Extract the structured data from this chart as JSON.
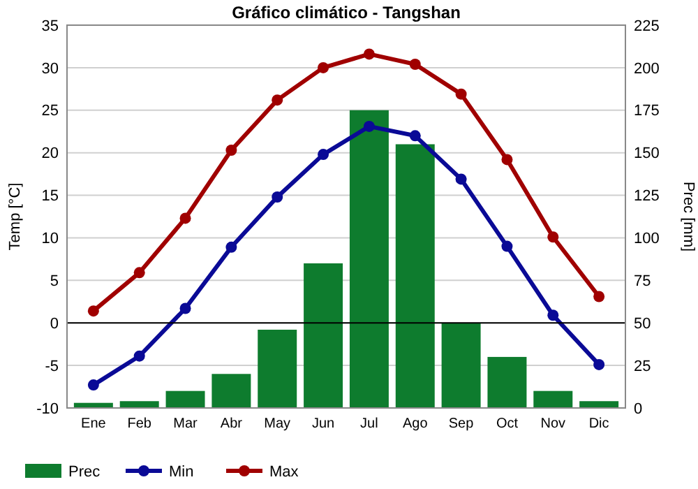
{
  "chart_data": {
    "type": "line",
    "title": "Gráfico climático - Tangshan",
    "ylabel": "Temp [°C]",
    "y2label": "Prec [mm]",
    "categories": [
      "Ene",
      "Feb",
      "Mar",
      "Abr",
      "May",
      "Jun",
      "Jul",
      "Ago",
      "Sep",
      "Oct",
      "Nov",
      "Dic"
    ],
    "series": [
      {
        "name": "Prec",
        "type": "bar",
        "axis": "y2",
        "color": "#0e7c2e",
        "values": [
          3,
          4,
          10,
          20,
          46,
          85,
          175,
          155,
          50,
          30,
          10,
          4
        ]
      },
      {
        "name": "Min",
        "color": "#0a0a96",
        "values": [
          -7.3,
          -3.9,
          1.7,
          8.9,
          14.8,
          19.8,
          23.1,
          22.0,
          16.9,
          9.0,
          0.9,
          -4.9
        ]
      },
      {
        "name": "Max",
        "color": "#a00000",
        "values": [
          1.4,
          5.9,
          12.3,
          20.3,
          26.2,
          30.0,
          31.6,
          30.4,
          26.9,
          19.2,
          10.1,
          3.1
        ]
      }
    ],
    "ylim": [
      -10,
      35
    ],
    "yticks": [
      -10,
      -5,
      0,
      5,
      10,
      15,
      20,
      25,
      30,
      35
    ],
    "y2lim": [
      0,
      225
    ],
    "y2ticks": [
      0,
      25,
      50,
      75,
      100,
      125,
      150,
      175,
      200,
      225
    ],
    "ref_lines": [
      {
        "axis": "y",
        "value": 0,
        "color": "#000000"
      }
    ],
    "grid": "y",
    "legend": "bottom",
    "marker": "circle",
    "line_style": "solid"
  }
}
